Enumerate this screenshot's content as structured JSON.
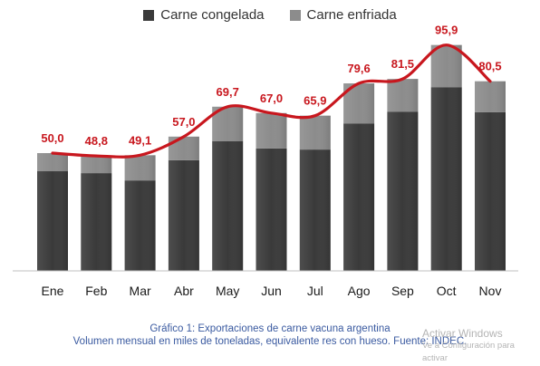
{
  "legend": {
    "congelada": "Carne congelada",
    "enfriada": "Carne enfriada"
  },
  "caption": {
    "line1": "Gráfico 1: Exportaciones de carne vacuna argentina",
    "line2": "Volumen mensual en miles de toneladas, equivalente res con hueso. Fuente: INDEC."
  },
  "watermark": {
    "title": "Activar Windows",
    "subtitle": "Ve a Configuración para activar"
  },
  "colors": {
    "congelada": "#3a3a3a",
    "enfriada": "#8c8c8c",
    "line": "#c8171e",
    "labels": "#c8171e"
  },
  "chart_data": {
    "type": "bar",
    "stacked": true,
    "categories": [
      "Ene",
      "Feb",
      "Mar",
      "Abr",
      "May",
      "Jun",
      "Jul",
      "Ago",
      "Sep",
      "Oct",
      "Nov"
    ],
    "series": [
      {
        "name": "Carne congelada",
        "values": [
          42.3,
          41.5,
          38.4,
          47.0,
          55.0,
          52.0,
          51.5,
          62.5,
          67.5,
          78.0,
          67.4
        ]
      },
      {
        "name": "Carne enfriada",
        "values": [
          7.7,
          7.3,
          10.7,
          10.0,
          14.7,
          15.0,
          14.4,
          17.1,
          14.0,
          17.9,
          13.1
        ]
      }
    ],
    "totals": [
      50.0,
      48.8,
      49.1,
      57.0,
      69.7,
      67.0,
      65.9,
      79.6,
      81.5,
      95.9,
      80.5
    ],
    "data_labels": [
      "50,0",
      "48,8",
      "49,1",
      "57,0",
      "69,7",
      "67,0",
      "65,9",
      "79,6",
      "81,5",
      "95,9",
      "80,5"
    ],
    "ylim": [
      0,
      100
    ],
    "grid": false,
    "legend_position": "top-center"
  }
}
